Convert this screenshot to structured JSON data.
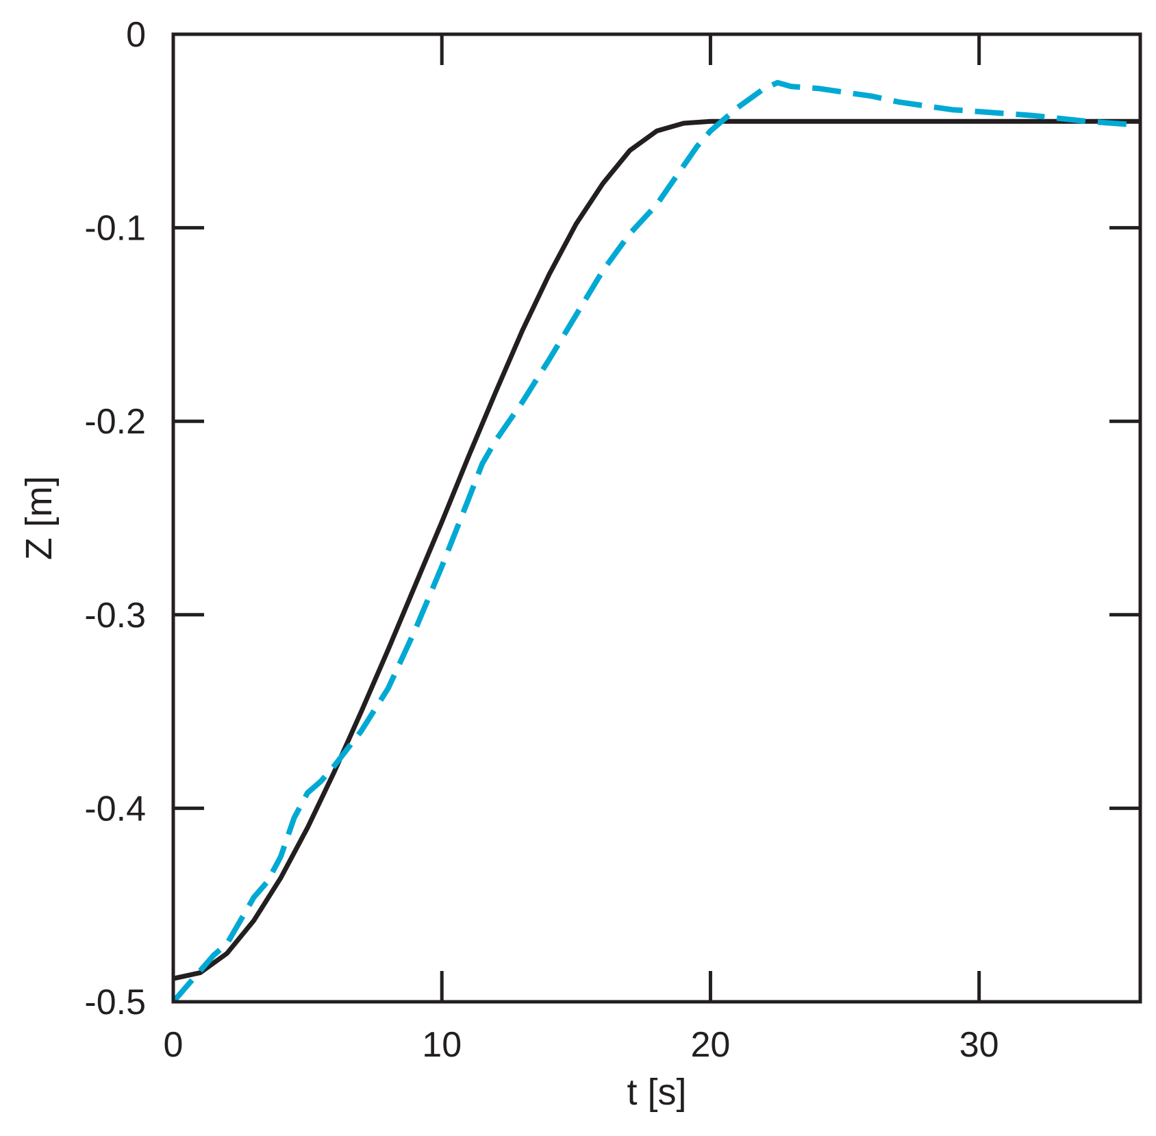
{
  "chart_data": {
    "type": "line",
    "title": "",
    "xlabel": "t [s]",
    "ylabel": "Z [m]",
    "xlim": [
      0,
      36
    ],
    "ylim": [
      -0.5,
      0
    ],
    "x_ticks": [
      0,
      10,
      20,
      30
    ],
    "x_tick_labels": [
      "0",
      "10",
      "20",
      "30"
    ],
    "y_ticks": [
      0,
      -0.1,
      -0.2,
      -0.3,
      -0.4,
      -0.5
    ],
    "y_tick_labels": [
      "0",
      "-0.1",
      "-0.2",
      "-0.3",
      "-0.4",
      "-0.5"
    ],
    "grid": false,
    "legend": "none",
    "series": [
      {
        "style": "solid",
        "color": "#231f20",
        "x": [
          0,
          1,
          2,
          3,
          4,
          5,
          6,
          7,
          8,
          9,
          10,
          11,
          12,
          13,
          14,
          15,
          16,
          17,
          18,
          19,
          20,
          21,
          22,
          24,
          26,
          28,
          30,
          32,
          34,
          36
        ],
        "y": [
          -0.488,
          -0.485,
          -0.475,
          -0.458,
          -0.436,
          -0.41,
          -0.381,
          -0.35,
          -0.318,
          -0.285,
          -0.252,
          -0.218,
          -0.185,
          -0.153,
          -0.124,
          -0.098,
          -0.077,
          -0.06,
          -0.05,
          -0.046,
          -0.045,
          -0.045,
          -0.045,
          -0.045,
          -0.045,
          -0.045,
          -0.045,
          -0.045,
          -0.045,
          -0.045
        ]
      },
      {
        "style": "dashed",
        "color": "#00a9d4",
        "x": [
          0,
          0.5,
          1,
          1.5,
          2,
          2.5,
          3,
          3.5,
          4,
          4.5,
          5,
          5.5,
          6,
          7,
          8,
          9,
          10,
          11,
          11.5,
          12,
          13,
          14,
          15,
          16,
          17,
          18,
          18.5,
          19,
          19.5,
          20,
          21,
          22,
          22.5,
          23,
          24,
          25,
          26,
          27,
          28,
          29,
          30,
          32,
          34,
          36
        ],
        "y": [
          -0.5,
          -0.492,
          -0.484,
          -0.476,
          -0.47,
          -0.458,
          -0.446,
          -0.438,
          -0.425,
          -0.405,
          -0.392,
          -0.386,
          -0.378,
          -0.36,
          -0.338,
          -0.308,
          -0.275,
          -0.24,
          -0.222,
          -0.21,
          -0.19,
          -0.168,
          -0.145,
          -0.122,
          -0.103,
          -0.088,
          -0.078,
          -0.068,
          -0.058,
          -0.05,
          -0.038,
          -0.028,
          -0.025,
          -0.027,
          -0.028,
          -0.03,
          -0.032,
          -0.035,
          -0.037,
          -0.039,
          -0.04,
          -0.042,
          -0.045,
          -0.047
        ]
      }
    ]
  }
}
